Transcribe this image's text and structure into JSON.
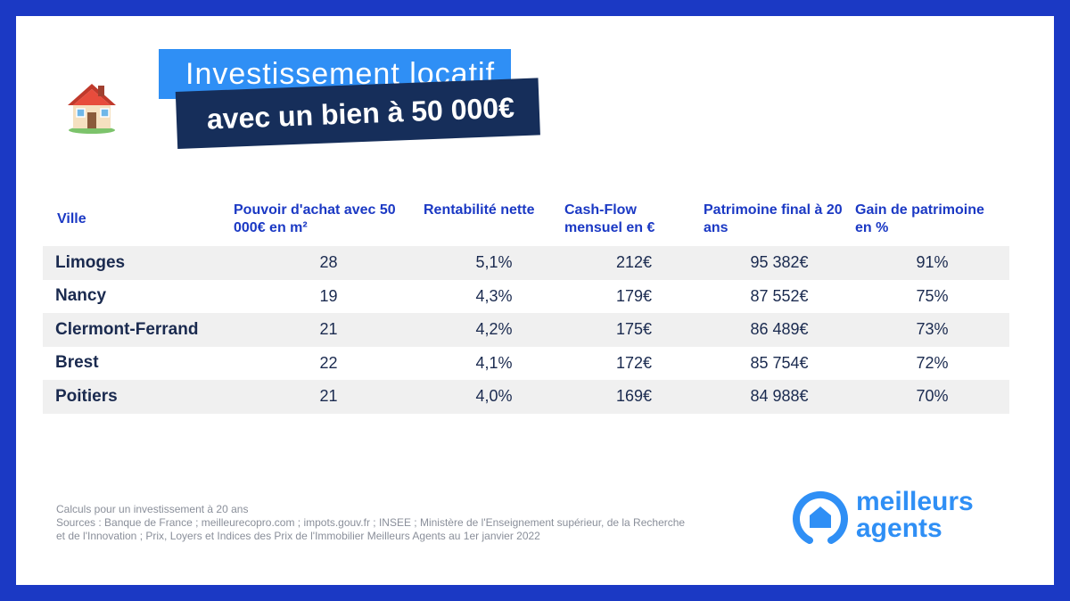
{
  "title": {
    "line1": "Investissement locatif",
    "line2": "avec un bien à 50 000€"
  },
  "house_icon": "house-emoji-icon",
  "table": {
    "headers": [
      "Ville",
      "Pouvoir d'achat avec 50 000€ en m²",
      "Rentabilité nette",
      "Cash-Flow mensuel en €",
      "Patrimoine final à 20 ans",
      "Gain de patrimoine en %"
    ],
    "rows": [
      [
        "Limoges",
        "28",
        "5,1%",
        "212€",
        "95 382€",
        "91%"
      ],
      [
        "Nancy",
        "19",
        "4,3%",
        "179€",
        "87 552€",
        "75%"
      ],
      [
        "Clermont-Ferrand",
        "21",
        "4,2%",
        "175€",
        "86 489€",
        "73%"
      ],
      [
        "Brest",
        "22",
        "4,1%",
        "172€",
        "85 754€",
        "72%"
      ],
      [
        "Poitiers",
        "21",
        "4,0%",
        "169€",
        "84 988€",
        "70%"
      ]
    ]
  },
  "footer": {
    "line1": "Calculs pour un investissement à 20 ans",
    "line2": "Sources : Banque de France ; meilleurecopro.com ; impots.gouv.fr ; INSEE ; Ministère de l'Enseignement supérieur, de la Recherche",
    "line3": "et de l'Innovation ; Prix, Loyers et Indices des Prix de l'Immobilier Meilleurs Agents au 1er janvier 2022"
  },
  "logo": {
    "word1": "meilleurs",
    "word2": "agents"
  },
  "colors": {
    "frame": "#1b39c4",
    "title_bg": "#2f8ff5",
    "subtitle_bg": "#162e5a",
    "header_text": "#1b39c4",
    "row_shade": "#f0f0f0"
  }
}
